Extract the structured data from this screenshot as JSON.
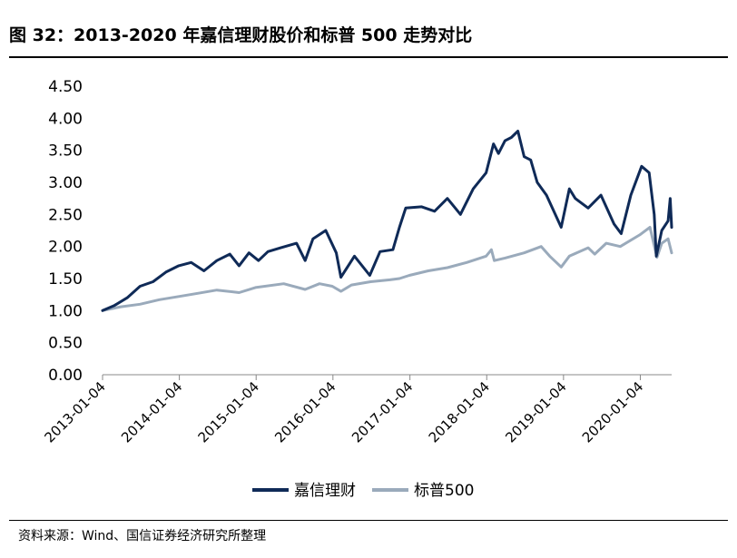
{
  "title": "图 32：2013-2020 年嘉信理财股价和标普 500 走势对比",
  "source": "资料来源：Wind、国信证券经济研究所整理",
  "chart_data": {
    "type": "line",
    "title": "图 32：2013-2020 年嘉信理财股价和标普 500 走势对比",
    "ylim": [
      0,
      4.5
    ],
    "yticks": [
      "0.00",
      "0.50",
      "1.00",
      "1.50",
      "2.00",
      "2.50",
      "3.00",
      "3.50",
      "4.00",
      "4.50"
    ],
    "xlim": [
      "2013-01-04",
      "2020-06-01"
    ],
    "xticks": [
      "2013-01-04",
      "2014-01-04",
      "2015-01-04",
      "2016-01-04",
      "2017-01-04",
      "2018-01-04",
      "2019-01-04",
      "2020-01-04"
    ],
    "grid": false,
    "legend": "bottom",
    "series": [
      {
        "name": "嘉信理财",
        "color": "#0f2a57",
        "x": [
          "2013-01-04",
          "2013-03-01",
          "2013-05-01",
          "2013-07-01",
          "2013-09-01",
          "2013-11-01",
          "2014-01-01",
          "2014-03-01",
          "2014-05-01",
          "2014-07-01",
          "2014-09-01",
          "2014-10-15",
          "2014-12-01",
          "2015-01-15",
          "2015-03-01",
          "2015-05-01",
          "2015-07-15",
          "2015-08-25",
          "2015-10-01",
          "2015-12-01",
          "2016-01-20",
          "2016-02-11",
          "2016-04-15",
          "2016-06-27",
          "2016-08-15",
          "2016-10-15",
          "2016-11-15",
          "2016-12-15",
          "2017-03-01",
          "2017-05-01",
          "2017-07-01",
          "2017-09-01",
          "2017-11-01",
          "2018-01-01",
          "2018-02-05",
          "2018-03-01",
          "2018-04-01",
          "2018-05-01",
          "2018-06-01",
          "2018-07-01",
          "2018-08-01",
          "2018-09-01",
          "2018-10-15",
          "2018-12-24",
          "2019-02-01",
          "2019-03-01",
          "2019-05-01",
          "2019-07-01",
          "2019-09-01",
          "2019-10-05",
          "2019-11-20",
          "2020-01-10",
          "2020-02-15",
          "2020-03-10",
          "2020-03-20",
          "2020-04-15",
          "2020-05-15",
          "2020-05-25",
          "2020-06-01"
        ],
        "values": [
          1.0,
          1.08,
          1.2,
          1.38,
          1.45,
          1.6,
          1.7,
          1.75,
          1.62,
          1.78,
          1.88,
          1.7,
          1.9,
          1.78,
          1.92,
          1.98,
          2.05,
          1.78,
          2.12,
          2.25,
          1.9,
          1.52,
          1.85,
          1.55,
          1.92,
          1.95,
          2.3,
          2.6,
          2.62,
          2.55,
          2.75,
          2.5,
          2.9,
          3.15,
          3.6,
          3.45,
          3.65,
          3.7,
          3.8,
          3.4,
          3.35,
          3.0,
          2.8,
          2.3,
          2.9,
          2.75,
          2.6,
          2.8,
          2.35,
          2.2,
          2.8,
          3.25,
          3.15,
          2.5,
          1.85,
          2.25,
          2.4,
          2.75,
          2.3
        ]
      },
      {
        "name": "标普500",
        "color": "#9aaabb",
        "x": [
          "2013-01-04",
          "2013-04-01",
          "2013-07-01",
          "2013-10-01",
          "2014-01-01",
          "2014-04-01",
          "2014-07-01",
          "2014-10-15",
          "2015-01-01",
          "2015-05-15",
          "2015-08-25",
          "2015-11-01",
          "2016-01-01",
          "2016-02-11",
          "2016-04-01",
          "2016-07-01",
          "2016-10-01",
          "2016-11-15",
          "2017-01-01",
          "2017-04-01",
          "2017-07-01",
          "2017-10-01",
          "2018-01-01",
          "2018-01-26",
          "2018-02-09",
          "2018-04-01",
          "2018-07-01",
          "2018-09-20",
          "2018-10-30",
          "2018-12-24",
          "2019-02-01",
          "2019-05-01",
          "2019-06-01",
          "2019-07-26",
          "2019-10-01",
          "2020-01-01",
          "2020-02-19",
          "2020-03-23",
          "2020-04-15",
          "2020-05-15",
          "2020-06-01"
        ],
        "values": [
          1.0,
          1.06,
          1.1,
          1.17,
          1.22,
          1.27,
          1.32,
          1.28,
          1.36,
          1.42,
          1.33,
          1.42,
          1.38,
          1.3,
          1.4,
          1.45,
          1.48,
          1.5,
          1.55,
          1.62,
          1.67,
          1.75,
          1.85,
          1.95,
          1.78,
          1.82,
          1.9,
          2.0,
          1.85,
          1.68,
          1.85,
          1.98,
          1.88,
          2.05,
          2.0,
          2.18,
          2.3,
          1.83,
          2.05,
          2.12,
          1.9
        ]
      }
    ]
  }
}
